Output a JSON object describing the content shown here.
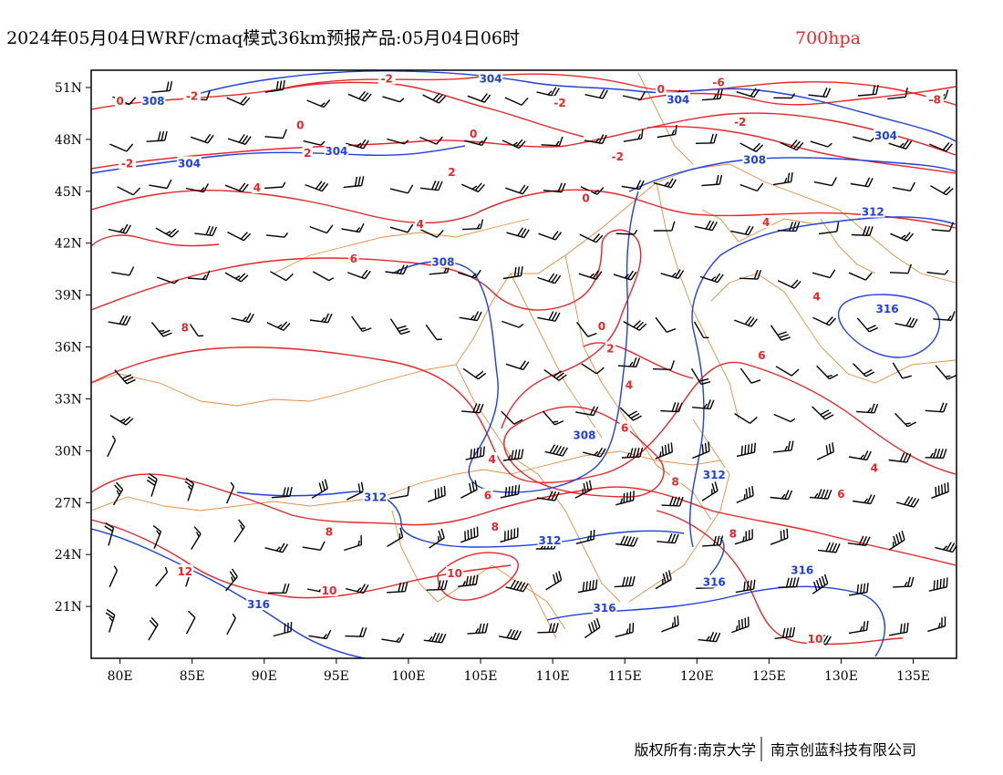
{
  "title": {
    "main": "2024年05月04日WRF/cmaq模式36km预报产品:05月04日06时",
    "level": "700hpa"
  },
  "map": {
    "lon_range": [
      78,
      138
    ],
    "lat_range": [
      18,
      52
    ],
    "x_ticks": [
      80,
      85,
      90,
      95,
      100,
      105,
      110,
      115,
      120,
      125,
      130,
      135
    ],
    "x_tick_labels": [
      "80E",
      "85E",
      "90E",
      "95E",
      "100E",
      "105E",
      "110E",
      "115E",
      "120E",
      "125E",
      "130E",
      "135E"
    ],
    "y_ticks": [
      21,
      24,
      27,
      30,
      33,
      36,
      39,
      42,
      45,
      48,
      51
    ],
    "y_tick_labels": [
      "21N",
      "24N",
      "27N",
      "30N",
      "33N",
      "36N",
      "39N",
      "42N",
      "45N",
      "48N",
      "51N"
    ],
    "colors": {
      "temperature": "#e8262a",
      "height": "#1f3fe0",
      "boundary": "#e07a1f",
      "wind": "#000000"
    },
    "temperature_labels": [
      {
        "text": "-2",
        "lon": 98.5,
        "lat": 51.5
      },
      {
        "text": "-2",
        "lon": 85,
        "lat": 50.5
      },
      {
        "text": "0",
        "lon": 80,
        "lat": 50.2
      },
      {
        "text": "-2",
        "lon": 110.5,
        "lat": 50.1
      },
      {
        "text": "0",
        "lon": 117.5,
        "lat": 50.9
      },
      {
        "text": "-6",
        "lon": 121.5,
        "lat": 51.3
      },
      {
        "text": "-8",
        "lon": 136.5,
        "lat": 50.3
      },
      {
        "text": "0",
        "lon": 92.5,
        "lat": 48.8
      },
      {
        "text": "0",
        "lon": 104.5,
        "lat": 48.3
      },
      {
        "text": "-2",
        "lon": 123,
        "lat": 49.0
      },
      {
        "text": "2",
        "lon": 93,
        "lat": 47.2
      },
      {
        "text": "-2",
        "lon": 80.5,
        "lat": 46.6
      },
      {
        "text": "2",
        "lon": 103,
        "lat": 46.1
      },
      {
        "text": "-2",
        "lon": 114.5,
        "lat": 47.0
      },
      {
        "text": "4",
        "lon": 89.5,
        "lat": 45.2
      },
      {
        "text": "0",
        "lon": 112.3,
        "lat": 44.6
      },
      {
        "text": "4",
        "lon": 100.8,
        "lat": 43.1
      },
      {
        "text": "4",
        "lon": 124.8,
        "lat": 43.2
      },
      {
        "text": "6",
        "lon": 96.2,
        "lat": 41.1
      },
      {
        "text": "8",
        "lon": 84.5,
        "lat": 37.1
      },
      {
        "text": "4",
        "lon": 128.3,
        "lat": 38.9
      },
      {
        "text": "0",
        "lon": 113.4,
        "lat": 37.2
      },
      {
        "text": "2",
        "lon": 114,
        "lat": 35.9
      },
      {
        "text": "6",
        "lon": 124.5,
        "lat": 35.5
      },
      {
        "text": "4",
        "lon": 115.3,
        "lat": 33.8
      },
      {
        "text": "6",
        "lon": 115,
        "lat": 31.3
      },
      {
        "text": "4",
        "lon": 105.8,
        "lat": 29.5
      },
      {
        "text": "6",
        "lon": 105.5,
        "lat": 27.4
      },
      {
        "text": "4",
        "lon": 132.3,
        "lat": 29.0
      },
      {
        "text": "6",
        "lon": 130,
        "lat": 27.5
      },
      {
        "text": "8",
        "lon": 118.5,
        "lat": 28.2
      },
      {
        "text": "8",
        "lon": 106,
        "lat": 25.6
      },
      {
        "text": "8",
        "lon": 94.5,
        "lat": 25.3
      },
      {
        "text": "8",
        "lon": 122.5,
        "lat": 25.2
      },
      {
        "text": "12",
        "lon": 84.5,
        "lat": 23.0
      },
      {
        "text": "10",
        "lon": 103.2,
        "lat": 22.9
      },
      {
        "text": "10",
        "lon": 94.5,
        "lat": 21.9
      },
      {
        "text": "10",
        "lon": 128.2,
        "lat": 19.1
      }
    ],
    "height_labels": [
      {
        "text": "304",
        "lon": 105.7,
        "lat": 51.5
      },
      {
        "text": "308",
        "lon": 82.3,
        "lat": 50.2
      },
      {
        "text": "304",
        "lon": 118.7,
        "lat": 50.3
      },
      {
        "text": "304",
        "lon": 95,
        "lat": 47.3
      },
      {
        "text": "304",
        "lon": 84.8,
        "lat": 46.6
      },
      {
        "text": "308",
        "lon": 124,
        "lat": 46.8
      },
      {
        "text": "304",
        "lon": 133.1,
        "lat": 48.2
      },
      {
        "text": "312",
        "lon": 132.2,
        "lat": 43.8
      },
      {
        "text": "308",
        "lon": 102.4,
        "lat": 40.9
      },
      {
        "text": "316",
        "lon": 133.2,
        "lat": 38.2
      },
      {
        "text": "308",
        "lon": 112.2,
        "lat": 30.9
      },
      {
        "text": "312",
        "lon": 121.2,
        "lat": 28.6
      },
      {
        "text": "312",
        "lon": 97.7,
        "lat": 27.3
      },
      {
        "text": "312",
        "lon": 109.8,
        "lat": 24.8
      },
      {
        "text": "316",
        "lon": 121.2,
        "lat": 22.4
      },
      {
        "text": "316",
        "lon": 127.3,
        "lat": 23.1
      },
      {
        "text": "316",
        "lon": 89.6,
        "lat": 21.1
      },
      {
        "text": "316",
        "lon": 113.6,
        "lat": 20.9
      }
    ]
  },
  "credit": {
    "left": "版权所有:南京大学",
    "right": "南京创蓝科技有限公司"
  }
}
